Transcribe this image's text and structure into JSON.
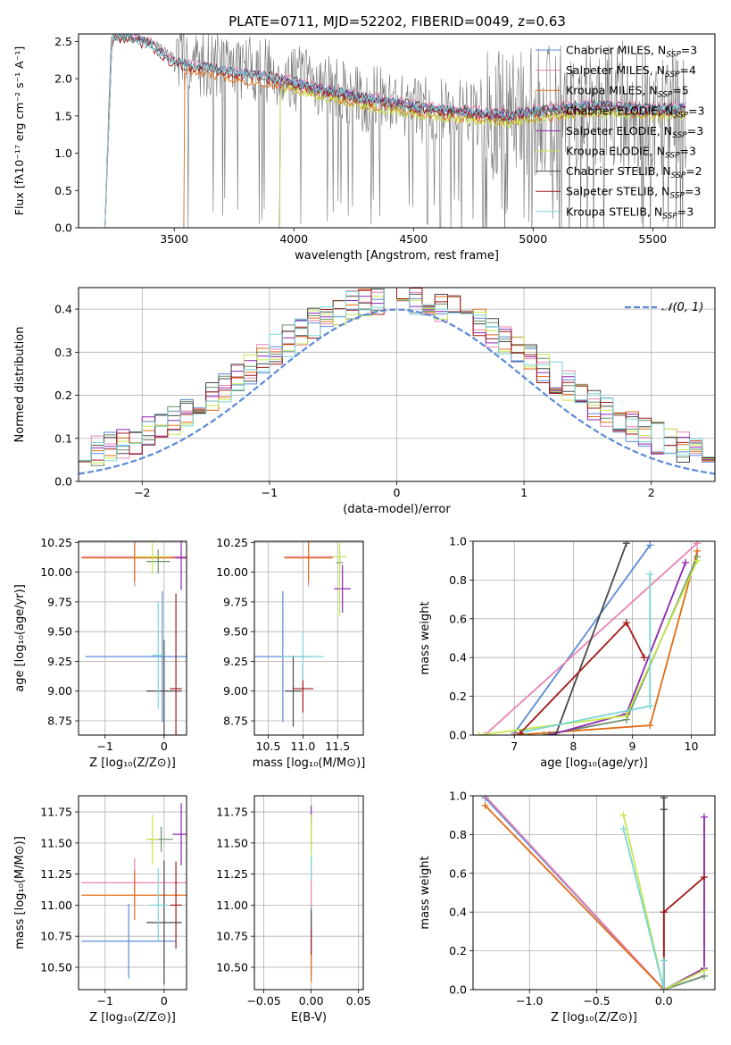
{
  "title": "PLATE=0711, MJD=52202, FIBERID=0049, z=0.63",
  "colors": {
    "chabrier_miles": "#5b8bd8",
    "salpeter_miles": "#e884b4",
    "kroupa_miles": "#e36c14",
    "chabrier_elodie": "#6a8f6a",
    "salpeter_elodie": "#8c25b0",
    "kroupa_elodie": "#c5e84e",
    "chabrier_stelib": "#4a4a4a",
    "salpeter_stelib": "#a01818",
    "kroupa_stelib": "#7ad6d6",
    "gaussian": "#5b8bd8",
    "observed_spectrum": "#707070"
  },
  "legend_labels": {
    "chabrier_miles": "Chabrier MILES, N",
    "salpeter_miles": "Salpeter MILES, N",
    "kroupa_miles": "Kroupa MILES, N",
    "chabrier_elodie": "Chabrier ELODIE, N",
    "salpeter_elodie": "Salpeter ELODIE, N",
    "kroupa_elodie": "Kroupa ELODIE, N",
    "chabrier_stelib": "Chabrier STELIB, N",
    "salpeter_stelib": "Salpeter STELIB, N",
    "kroupa_stelib": "Kroupa STELIB, N",
    "ssp_sub": "SSP",
    "nssp": {
      "chabrier_miles": "=3",
      "salpeter_miles": "=4",
      "kroupa_miles": "=5",
      "chabrier_elodie": "=3",
      "salpeter_elodie": "=3",
      "kroupa_elodie": "=3",
      "chabrier_stelib": "=2",
      "salpeter_stelib": "=3",
      "kroupa_stelib": "=3"
    }
  },
  "chart_data": [
    {
      "id": "spectrum",
      "type": "line",
      "title": "PLATE=0711, MJD=52202, FIBERID=0049, z=0.63",
      "xlabel": "wavelength [Angstrom, rest frame]",
      "ylabel": "Flux [fλ10⁻¹⁷ erg cm⁻² s⁻¹ A⁻¹]",
      "xlim": [
        3100,
        5760
      ],
      "ylim": [
        0,
        2.6
      ],
      "xticks": [
        3500,
        4000,
        4500,
        5000,
        5500
      ],
      "yticks": [
        0.0,
        0.5,
        1.0,
        1.5,
        2.0,
        2.5
      ],
      "legend_position": "top-right",
      "observed_spectrum_anchors": [
        [
          3210,
          0
        ],
        [
          3235,
          2.5
        ],
        [
          3300,
          2.55
        ],
        [
          3400,
          2.5
        ],
        [
          3500,
          2.3
        ],
        [
          3600,
          2.2
        ],
        [
          3700,
          2.2
        ],
        [
          3800,
          2.15
        ],
        [
          3900,
          2.1
        ],
        [
          4000,
          2.0
        ],
        [
          4100,
          1.95
        ],
        [
          4200,
          1.8
        ],
        [
          4300,
          1.7
        ],
        [
          4400,
          1.75
        ],
        [
          4500,
          1.6
        ],
        [
          4600,
          1.55
        ],
        [
          4700,
          1.55
        ],
        [
          4800,
          1.55
        ],
        [
          4900,
          1.45
        ],
        [
          5000,
          1.55
        ],
        [
          5100,
          1.6
        ],
        [
          5200,
          1.65
        ],
        [
          5300,
          1.65
        ],
        [
          5400,
          1.6
        ],
        [
          5500,
          1.55
        ],
        [
          5640,
          1.6
        ]
      ],
      "model_anchors": [
        [
          3210,
          0
        ],
        [
          3240,
          2.55
        ],
        [
          3300,
          2.55
        ],
        [
          3400,
          2.45
        ],
        [
          3500,
          2.2
        ],
        [
          3600,
          2.15
        ],
        [
          3700,
          2.1
        ],
        [
          3800,
          2.05
        ],
        [
          3900,
          2.0
        ],
        [
          4000,
          1.95
        ],
        [
          4100,
          1.85
        ],
        [
          4200,
          1.8
        ],
        [
          4300,
          1.72
        ],
        [
          4400,
          1.68
        ],
        [
          4500,
          1.62
        ],
        [
          4600,
          1.58
        ],
        [
          4700,
          1.55
        ],
        [
          4800,
          1.52
        ],
        [
          4900,
          1.5
        ],
        [
          5000,
          1.55
        ],
        [
          5100,
          1.58
        ],
        [
          5200,
          1.62
        ],
        [
          5300,
          1.63
        ],
        [
          5400,
          1.6
        ],
        [
          5500,
          1.58
        ],
        [
          5640,
          1.6
        ]
      ],
      "model_offsets": {
        "chabrier_miles": 0.02,
        "salpeter_miles": 0.05,
        "kroupa_miles": -0.08,
        "chabrier_elodie": -0.03,
        "salpeter_elodie": 0.0,
        "kroupa_elodie": -0.1,
        "chabrier_stelib": 0.03,
        "salpeter_stelib": -0.02,
        "kroupa_stelib": 0.01
      },
      "model_start": {
        "chabrier_miles": 3210,
        "salpeter_miles": 3210,
        "kroupa_miles": 3540,
        "chabrier_elodie": 3940,
        "salpeter_elodie": 3940,
        "kroupa_elodie": 3940,
        "chabrier_stelib": 3210,
        "salpeter_stelib": 3210,
        "kroupa_stelib": 3210
      },
      "model_end": 5640
    },
    {
      "id": "residuals",
      "type": "histogram",
      "xlabel": "(data-model)/error",
      "ylabel": "Normed distribution",
      "xlim": [
        -2.5,
        2.5
      ],
      "ylim": [
        0,
        0.45
      ],
      "xticks": [
        -2,
        -1,
        0,
        1,
        2
      ],
      "yticks": [
        0.0,
        0.1,
        0.2,
        0.3,
        0.4
      ],
      "bin_width": 0.1,
      "gaussian_label": "𝒩(0, 1)",
      "legend_position": "top-right"
    },
    {
      "id": "age-vs-Z",
      "type": "errorbar",
      "xlabel": "Z [log₁₀(Z/Z⊙)]",
      "ylabel": "age  [log₁₀(age/yr)]",
      "xlim": [
        -1.45,
        0.38
      ],
      "ylim": [
        8.63,
        10.26
      ],
      "xticks": [
        -1,
        0
      ],
      "yticks": [
        8.75,
        9.0,
        9.25,
        9.5,
        9.75,
        10.0,
        10.25
      ],
      "points": [
        {
          "s": "chabrier_miles",
          "x": -0.03,
          "y": 9.29,
          "xerr": 1.3,
          "yerr": 0.55
        },
        {
          "s": "salpeter_miles",
          "x": -0.5,
          "y": 10.13,
          "xerr": 0.9,
          "yerr": 0.25
        },
        {
          "s": "kroupa_miles",
          "x": -0.5,
          "y": 10.12,
          "xerr": 0.9,
          "yerr": 0.2
        },
        {
          "s": "chabrier_elodie",
          "x": -0.1,
          "y": 10.09,
          "xerr": 0.2,
          "yerr": 0.1
        },
        {
          "s": "salpeter_elodie",
          "x": 0.29,
          "y": 10.12,
          "xerr": 0.1,
          "yerr": 0.27
        },
        {
          "s": "kroupa_elodie",
          "x": -0.2,
          "y": 10.13,
          "xerr": 0.3,
          "yerr": 0.15
        },
        {
          "s": "chabrier_stelib",
          "x": 0.0,
          "y": 9.0,
          "xerr": 0.3,
          "yerr": 0.43
        },
        {
          "s": "salpeter_stelib",
          "x": 0.2,
          "y": 9.02,
          "xerr": 0.1,
          "yerr": 0.8
        },
        {
          "s": "kroupa_stelib",
          "x": -0.1,
          "y": 9.3,
          "xerr": 0.1,
          "yerr": 0.45
        }
      ]
    },
    {
      "id": "age-vs-mass",
      "type": "errorbar",
      "xlabel": "mass [log₁₀(M/M⊙)]",
      "ylabel": "",
      "xlim": [
        10.3,
        11.87
      ],
      "ylim": [
        8.63,
        10.26
      ],
      "xticks": [
        10.5,
        11.0,
        11.5
      ],
      "yticks": [
        8.75,
        9.0,
        9.25,
        9.5,
        9.75,
        10.0,
        10.25
      ],
      "points": [
        {
          "s": "chabrier_miles",
          "x": 10.71,
          "y": 9.29,
          "xerr": 0.4,
          "yerr": 0.55
        },
        {
          "s": "salpeter_miles",
          "x": 11.08,
          "y": 10.13,
          "xerr": 0.35,
          "yerr": 0.25
        },
        {
          "s": "kroupa_miles",
          "x": 11.08,
          "y": 10.12,
          "xerr": 0.35,
          "yerr": 0.2
        },
        {
          "s": "chabrier_elodie",
          "x": 11.53,
          "y": 10.08,
          "xerr": 0.05,
          "yerr": 0.1
        },
        {
          "s": "salpeter_elodie",
          "x": 11.57,
          "y": 9.86,
          "xerr": 0.12,
          "yerr": 0.2
        },
        {
          "s": "kroupa_elodie",
          "x": 11.53,
          "y": 10.13,
          "xerr": 0.1,
          "yerr": 0.5
        },
        {
          "s": "chabrier_stelib",
          "x": 10.86,
          "y": 9.0,
          "xerr": 0.12,
          "yerr": 0.3
        },
        {
          "s": "salpeter_stelib",
          "x": 11.0,
          "y": 9.02,
          "xerr": 0.15,
          "yerr": 0.2
        },
        {
          "s": "kroupa_stelib",
          "x": 11.0,
          "y": 9.29,
          "xerr": 0.3,
          "yerr": 0.2
        }
      ]
    },
    {
      "id": "weight-vs-age",
      "type": "line",
      "xlabel": "age  [log₁₀(age/yr)]",
      "ylabel": "mass weight",
      "xlim": [
        6.3,
        10.4
      ],
      "ylim": [
        0,
        1.0
      ],
      "xticks": [
        7,
        8,
        9,
        10
      ],
      "yticks": [
        0.0,
        0.2,
        0.4,
        0.6,
        0.8,
        1.0
      ],
      "series": [
        {
          "s": "chabrier_miles",
          "x": [
            7.0,
            9.3
          ],
          "y": [
            0.01,
            0.98
          ]
        },
        {
          "s": "salpeter_miles",
          "x": [
            6.5,
            10.1
          ],
          "y": [
            0.0,
            0.99
          ]
        },
        {
          "s": "kroupa_miles",
          "x": [
            7.0,
            9.3,
            10.1
          ],
          "y": [
            0.0,
            0.05,
            0.95
          ]
        },
        {
          "s": "chabrier_elodie",
          "x": [
            7.5,
            8.9,
            10.1
          ],
          "y": [
            0.0,
            0.08,
            0.92
          ]
        },
        {
          "s": "salpeter_elodie",
          "x": [
            7.6,
            8.9,
            9.9
          ],
          "y": [
            0.0,
            0.11,
            0.89
          ]
        },
        {
          "s": "kroupa_elodie",
          "x": [
            6.4,
            8.9,
            10.1
          ],
          "y": [
            0.0,
            0.1,
            0.9
          ]
        },
        {
          "s": "chabrier_stelib",
          "x": [
            7.7,
            8.9
          ],
          "y": [
            0.0,
            0.99
          ]
        },
        {
          "s": "salpeter_stelib",
          "x": [
            7.1,
            8.9,
            9.2
          ],
          "y": [
            0.01,
            0.58,
            0.4
          ]
        },
        {
          "s": "kroupa_stelib",
          "x": [
            7.2,
            9.3,
            9.3
          ],
          "y": [
            0.02,
            0.15,
            0.83
          ]
        }
      ]
    },
    {
      "id": "mass-vs-Z",
      "type": "errorbar",
      "xlabel": "Z [log₁₀(Z/Z⊙)]",
      "ylabel": "mass [log₁₀(M/M⊙)]",
      "xlim": [
        -1.45,
        0.38
      ],
      "ylim": [
        10.32,
        11.88
      ],
      "xticks": [
        -1,
        0
      ],
      "yticks": [
        10.5,
        10.75,
        11.0,
        11.25,
        11.5,
        11.75
      ],
      "points": [
        {
          "s": "chabrier_miles",
          "x": -0.6,
          "y": 10.71,
          "xerr": 0.8,
          "yerr": 0.3
        },
        {
          "s": "salpeter_miles",
          "x": -0.5,
          "y": 11.18,
          "xerr": 0.9,
          "yerr": 0.2
        },
        {
          "s": "kroupa_miles",
          "x": -0.5,
          "y": 11.08,
          "xerr": 0.9,
          "yerr": 0.2
        },
        {
          "s": "chabrier_elodie",
          "x": -0.05,
          "y": 11.53,
          "xerr": 0.2,
          "yerr": 0.1
        },
        {
          "s": "salpeter_elodie",
          "x": 0.29,
          "y": 11.57,
          "xerr": 0.15,
          "yerr": 0.25
        },
        {
          "s": "kroupa_elodie",
          "x": -0.2,
          "y": 11.53,
          "xerr": 0.1,
          "yerr": 0.2
        },
        {
          "s": "chabrier_stelib",
          "x": 0.0,
          "y": 10.86,
          "xerr": 0.3,
          "yerr": 0.5
        },
        {
          "s": "salpeter_stelib",
          "x": 0.2,
          "y": 11.0,
          "xerr": 0.1,
          "yerr": 0.35
        },
        {
          "s": "kroupa_stelib",
          "x": -0.1,
          "y": 11.0,
          "xerr": 0.15,
          "yerr": 0.3
        }
      ]
    },
    {
      "id": "mass-vs-ebv",
      "type": "errorbar",
      "xlabel": "E(B-V)",
      "ylabel": "",
      "xlim": [
        -0.06,
        0.055
      ],
      "ylim": [
        10.32,
        11.88
      ],
      "xticks": [
        -0.05,
        0.0,
        0.05
      ],
      "yticks": [
        10.5,
        10.75,
        11.0,
        11.25,
        11.5,
        11.75
      ],
      "points": [
        {
          "s": "chabrier_miles",
          "x": 0.0,
          "y": 10.71,
          "xerr": 0.0,
          "yerr": 0.3
        },
        {
          "s": "salpeter_miles",
          "x": 0.0,
          "y": 11.18,
          "xerr": 0.0,
          "yerr": 0.2
        },
        {
          "s": "kroupa_miles",
          "x": 0.0,
          "y": 10.5,
          "xerr": 0.0,
          "yerr": 0.12
        },
        {
          "s": "chabrier_elodie",
          "x": 0.0,
          "y": 11.53,
          "xerr": 0.0,
          "yerr": 0.1
        },
        {
          "s": "salpeter_elodie",
          "x": 0.0,
          "y": 11.72,
          "xerr": 0.0,
          "yerr": 0.08
        },
        {
          "s": "kroupa_elodie",
          "x": 0.0,
          "y": 11.53,
          "xerr": 0.0,
          "yerr": 0.2
        },
        {
          "s": "chabrier_stelib",
          "x": 0.0,
          "y": 10.86,
          "xerr": 0.0,
          "yerr": 0.1
        },
        {
          "s": "salpeter_stelib",
          "x": 0.0,
          "y": 10.7,
          "xerr": 0.0,
          "yerr": 0.1
        },
        {
          "s": "kroupa_stelib",
          "x": 0.0,
          "y": 11.3,
          "xerr": 0.0,
          "yerr": 0.1
        }
      ]
    },
    {
      "id": "weight-vs-Z",
      "type": "line",
      "xlabel": "Z [log₁₀(Z/Z⊙)]",
      "ylabel": "mass weight",
      "xlim": [
        -1.42,
        0.38
      ],
      "ylim": [
        0,
        1.0
      ],
      "xticks": [
        -1.0,
        -0.5,
        0.0
      ],
      "yticks": [
        0.0,
        0.2,
        0.4,
        0.6,
        0.8,
        1.0
      ],
      "series": [
        {
          "s": "chabrier_miles",
          "x": [
            -1.33,
            0.0
          ],
          "y": [
            0.99,
            0.0
          ]
        },
        {
          "s": "salpeter_miles",
          "x": [
            -1.33,
            0.0
          ],
          "y": [
            1.0,
            0.0
          ]
        },
        {
          "s": "kroupa_miles",
          "x": [
            -1.33,
            0.0
          ],
          "y": [
            0.95,
            0.0
          ]
        },
        {
          "s": "chabrier_elodie",
          "x": [
            0.0,
            0.3
          ],
          "y": [
            0.0,
            0.07
          ]
        },
        {
          "s": "salpeter_elodie",
          "x": [
            0.0,
            0.3,
            0.3
          ],
          "y": [
            0.0,
            0.11,
            0.89
          ]
        },
        {
          "s": "kroupa_elodie",
          "x": [
            -0.3,
            0.0,
            0.3
          ],
          "y": [
            0.9,
            0.0,
            0.1
          ]
        },
        {
          "s": "chabrier_stelib",
          "x": [
            0.0,
            0.0,
            0.0
          ],
          "y": [
            0.0,
            0.93,
            0.99
          ]
        },
        {
          "s": "salpeter_stelib",
          "x": [
            0.0,
            0.0,
            0.3
          ],
          "y": [
            0.0,
            0.4,
            0.58
          ]
        },
        {
          "s": "kroupa_stelib",
          "x": [
            -0.3,
            0.0,
            0.0
          ],
          "y": [
            0.83,
            0.0,
            0.15
          ]
        }
      ]
    }
  ]
}
